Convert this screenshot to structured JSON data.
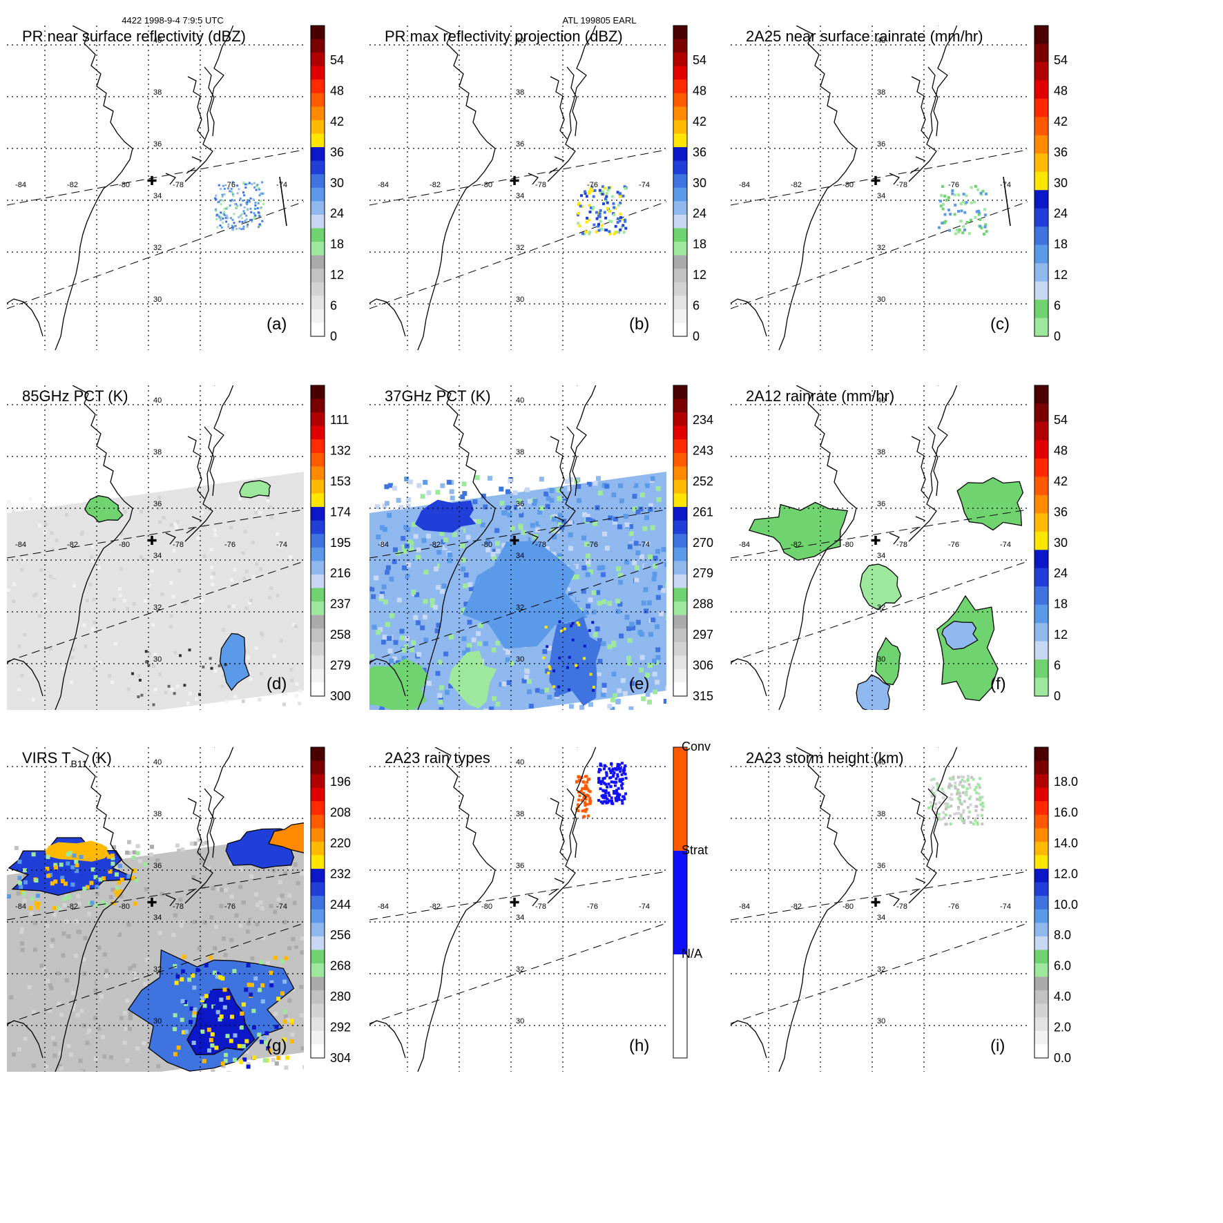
{
  "header": {
    "orbit_time": "4422 1998-9-4 7:9:5 UTC",
    "storm": "ATL 199805 EARL"
  },
  "colors": {
    "gray_ramp": [
      "#ffffff",
      "#f2f2f2",
      "#e3e3e3",
      "#d3d3d3",
      "#c2c2c2",
      "#aaaaaa"
    ],
    "green": [
      "#9ee89e",
      "#6fd36f"
    ],
    "blue": [
      "#c8d8f4",
      "#8fb8ee",
      "#5a9ae8",
      "#3f73e0",
      "#1f3fd8",
      "#0c18c8"
    ],
    "warm": [
      "#ffe600",
      "#ffba00",
      "#ff8a00",
      "#ff5a00",
      "#ff2a00",
      "#e00000",
      "#b00000",
      "#7a0000",
      "#4a0000"
    ],
    "raintype": [
      "#ffffff",
      "#1010ff",
      "#ff5a00"
    ]
  },
  "map": {
    "lon_ticks": [
      "-84",
      "-82",
      "-80",
      "-78",
      "-76",
      "-74"
    ],
    "lat_ticks": [
      "40",
      "38",
      "36",
      "34",
      "32",
      "30"
    ],
    "marker": "✚"
  },
  "panels": [
    {
      "id": "a",
      "title": "PR near surface reflectivity (dBZ)",
      "label": "(a)",
      "cbar": "dbz",
      "ticks": [
        "54",
        "48",
        "42",
        "36",
        "30",
        "24",
        "18",
        "12",
        "6",
        "0"
      ]
    },
    {
      "id": "b",
      "title": "PR max reflectivity projection (dBZ)",
      "label": "(b)",
      "cbar": "dbz",
      "ticks": [
        "54",
        "48",
        "42",
        "36",
        "30",
        "24",
        "18",
        "12",
        "6",
        "0"
      ]
    },
    {
      "id": "c",
      "title": "2A25 near surface rainrate (mm/hr)",
      "label": "(c)",
      "cbar": "rain",
      "ticks": [
        "54",
        "48",
        "42",
        "36",
        "30",
        "24",
        "18",
        "12",
        "6",
        "0"
      ]
    },
    {
      "id": "d",
      "title": "85GHz PCT (K)",
      "label": "(d)",
      "cbar": "tb",
      "ticks": [
        "111",
        "132",
        "153",
        "174",
        "195",
        "216",
        "237",
        "258",
        "279",
        "300"
      ]
    },
    {
      "id": "e",
      "title": "37GHz PCT (K)",
      "label": "(e)",
      "cbar": "tb",
      "ticks": [
        "234",
        "243",
        "252",
        "261",
        "270",
        "279",
        "288",
        "297",
        "306",
        "315"
      ]
    },
    {
      "id": "f",
      "title": "2A12 rainrate (mm/hr)",
      "label": "(f)",
      "cbar": "rain",
      "ticks": [
        "54",
        "48",
        "42",
        "36",
        "30",
        "24",
        "18",
        "12",
        "6",
        "0"
      ]
    },
    {
      "id": "g",
      "title": "VIRS T",
      "title_sub": "B11",
      "title_tail": " (K)",
      "label": "(g)",
      "cbar": "tb",
      "ticks": [
        "196",
        "208",
        "220",
        "232",
        "244",
        "256",
        "268",
        "280",
        "292",
        "304"
      ]
    },
    {
      "id": "h",
      "title": "2A23 rain types",
      "label": "(h)",
      "cbar": "type",
      "ticks": [
        "Conv",
        "Strat",
        "N/A"
      ]
    },
    {
      "id": "i",
      "title": "2A23 storm height (km)",
      "label": "(i)",
      "cbar": "tb",
      "ticks": [
        "18.0",
        "16.0",
        "14.0",
        "12.0",
        "10.0",
        "8.0",
        "6.0",
        "4.0",
        "2.0",
        "0.0"
      ]
    }
  ]
}
